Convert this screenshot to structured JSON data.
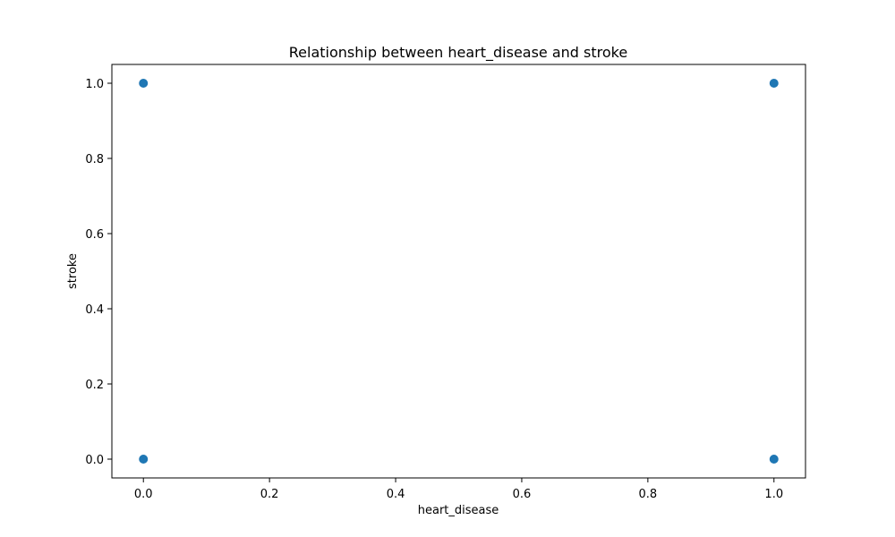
{
  "chart_data": {
    "type": "scatter",
    "title": "Relationship between heart_disease and stroke",
    "xlabel": "heart_disease",
    "ylabel": "stroke",
    "xlim": [
      -0.05,
      1.05
    ],
    "ylim": [
      -0.05,
      1.05
    ],
    "x_ticks": [
      0.0,
      0.2,
      0.4,
      0.6,
      0.8,
      1.0
    ],
    "x_tick_labels": [
      "0.0",
      "0.2",
      "0.4",
      "0.6",
      "0.8",
      "1.0"
    ],
    "y_ticks": [
      0.0,
      0.2,
      0.4,
      0.6,
      0.8,
      1.0
    ],
    "y_tick_labels": [
      "0.0",
      "0.2",
      "0.4",
      "0.6",
      "0.8",
      "1.0"
    ],
    "grid": false,
    "points": [
      {
        "x": 0,
        "y": 1
      },
      {
        "x": 0,
        "y": 0
      },
      {
        "x": 1,
        "y": 1
      },
      {
        "x": 1,
        "y": 0
      }
    ],
    "marker_color": "#1f77b4"
  }
}
